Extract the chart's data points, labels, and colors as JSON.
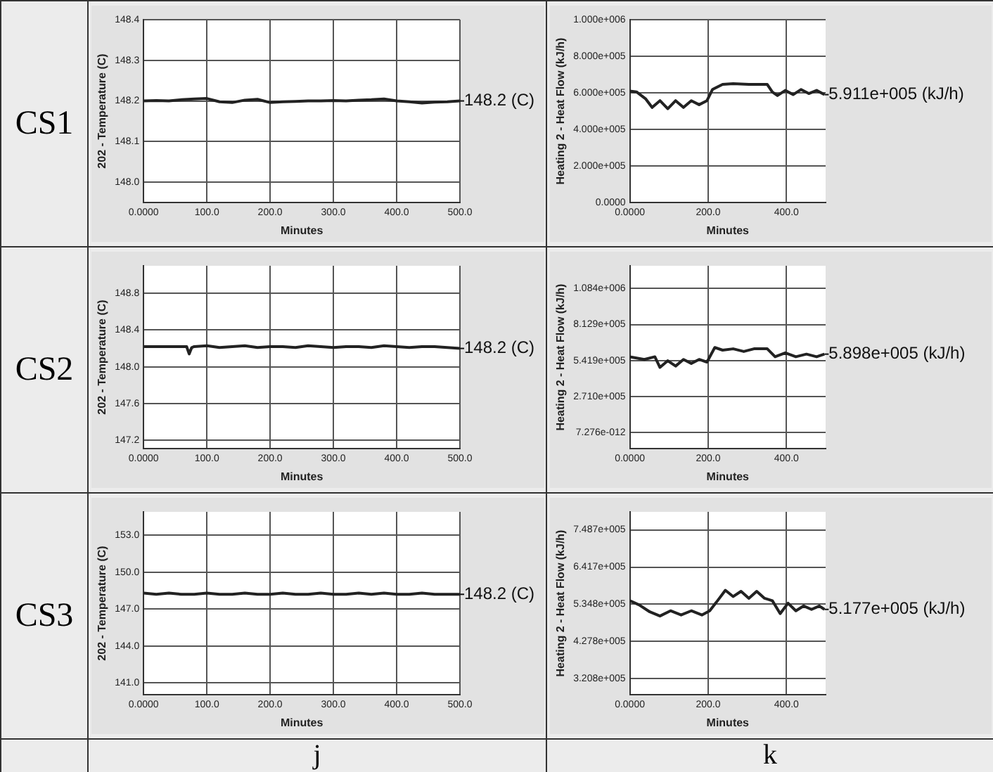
{
  "chart_data": [
    {
      "type": "line",
      "xlabel": "Minutes",
      "ylabel": "202 - Temperature (C)",
      "grid": true,
      "x": [
        0,
        20,
        40,
        60,
        80,
        100,
        120,
        140,
        160,
        180,
        200,
        220,
        240,
        260,
        280,
        300,
        320,
        340,
        360,
        380,
        400,
        420,
        440,
        460,
        480,
        500
      ],
      "series": [
        {
          "color": "#222222",
          "values": [
            148.2,
            148.201,
            148.2,
            148.203,
            148.205,
            148.206,
            148.198,
            148.196,
            148.202,
            148.204,
            148.196,
            148.198,
            148.199,
            148.2,
            148.2,
            148.201,
            148.2,
            148.202,
            148.203,
            148.205,
            148.2,
            148.198,
            148.195,
            148.197,
            148.198,
            148.2
          ]
        }
      ],
      "xlim": [
        0,
        500
      ],
      "xticks": [
        {
          "value": 0,
          "label": "0.0000"
        },
        {
          "value": 100,
          "label": "100.0"
        },
        {
          "value": 200,
          "label": "200.0"
        },
        {
          "value": 300,
          "label": "300.0"
        },
        {
          "value": 400,
          "label": "400.0"
        },
        {
          "value": 500,
          "label": "500.0"
        }
      ],
      "ylim": [
        147.95,
        148.4
      ],
      "yticks": [
        {
          "value": 148.0,
          "label": "148.0"
        },
        {
          "value": 148.1,
          "label": "148.1"
        },
        {
          "value": 148.2,
          "label": "148.2"
        },
        {
          "value": 148.3,
          "label": "148.3"
        },
        {
          "value": 148.4,
          "label": "148.4"
        }
      ],
      "annotations": [
        "CS1",
        "148.2 (C)"
      ]
    },
    {
      "type": "line",
      "xlabel": "Minutes",
      "ylabel": "Heating 2 - Heat Flow (kJ/h)",
      "grid": true,
      "x": [
        0,
        17,
        40,
        57,
        77,
        97,
        117,
        137,
        157,
        177,
        197,
        211,
        237,
        264,
        304,
        351,
        364,
        377,
        397,
        417,
        437,
        457,
        477,
        497
      ],
      "series": [
        {
          "color": "#222222",
          "values": [
            610000,
            605000,
            568000,
            520000,
            557000,
            513000,
            557000,
            520000,
            557000,
            535000,
            557000,
            618000,
            646000,
            650000,
            646000,
            646000,
            604000,
            585000,
            613000,
            590000,
            618000,
            596000,
            613000,
            590000
          ]
        }
      ],
      "xlim": [
        0,
        500
      ],
      "xticks": [
        {
          "value": 0,
          "label": "0.0000"
        },
        {
          "value": 200,
          "label": "200.0"
        },
        {
          "value": 400,
          "label": "400.0"
        }
      ],
      "ylim": [
        0,
        1000000
      ],
      "yticks": [
        {
          "value": 0,
          "label": "0.0000"
        },
        {
          "value": 200000,
          "label": "2.000e+005"
        },
        {
          "value": 400000,
          "label": "4.000e+005"
        },
        {
          "value": 600000,
          "label": "6.000e+005"
        },
        {
          "value": 800000,
          "label": "8.000e+005"
        },
        {
          "value": 1000000,
          "label": "1.000e+006"
        }
      ],
      "annotations": [
        "5.911e+005 (kJ/h)"
      ]
    },
    {
      "type": "line",
      "xlabel": "Minutes",
      "ylabel": "202 - Temperature (C)",
      "grid": true,
      "x": [
        0,
        20,
        40,
        60,
        68,
        72,
        76,
        80,
        100,
        120,
        140,
        160,
        180,
        200,
        220,
        240,
        260,
        280,
        300,
        320,
        340,
        360,
        380,
        400,
        420,
        440,
        460,
        480,
        500
      ],
      "series": [
        {
          "color": "#222222",
          "values": [
            148.22,
            148.22,
            148.22,
            148.22,
            148.22,
            148.14,
            148.21,
            148.22,
            148.23,
            148.21,
            148.22,
            148.23,
            148.21,
            148.22,
            148.22,
            148.21,
            148.23,
            148.22,
            148.21,
            148.22,
            148.22,
            148.21,
            148.23,
            148.22,
            148.21,
            148.22,
            148.22,
            148.21,
            148.2
          ]
        }
      ],
      "xlim": [
        0,
        500
      ],
      "xticks": [
        {
          "value": 0,
          "label": "0.0000"
        },
        {
          "value": 100,
          "label": "100.0"
        },
        {
          "value": 200,
          "label": "200.0"
        },
        {
          "value": 300,
          "label": "300.0"
        },
        {
          "value": 400,
          "label": "400.0"
        },
        {
          "value": 500,
          "label": "500.0"
        }
      ],
      "ylim": [
        147.11,
        149.1
      ],
      "yticks": [
        {
          "value": 147.2,
          "label": "147.2"
        },
        {
          "value": 147.6,
          "label": "147.6"
        },
        {
          "value": 148.0,
          "label": "148.0"
        },
        {
          "value": 148.4,
          "label": "148.4"
        },
        {
          "value": 148.8,
          "label": "148.8"
        }
      ],
      "annotations": [
        "CS2",
        "148.2 (C)"
      ]
    },
    {
      "type": "line",
      "xlabel": "Minutes",
      "ylabel": "Heating 2 - Heat Flow (kJ/h)",
      "grid": true,
      "x": [
        0,
        37,
        64,
        77,
        97,
        117,
        137,
        157,
        177,
        197,
        217,
        237,
        264,
        291,
        317,
        351,
        371,
        397,
        424,
        451,
        477,
        497
      ],
      "series": [
        {
          "color": "#222222",
          "values": [
            570000,
            550000,
            570000,
            490000,
            540000,
            500000,
            550000,
            520000,
            550000,
            530000,
            640000,
            620000,
            630000,
            610000,
            630000,
            630000,
            570000,
            600000,
            570000,
            590000,
            570000,
            590000
          ]
        }
      ],
      "xlim": [
        0,
        500
      ],
      "xticks": [
        {
          "value": 0,
          "label": "0.0000"
        },
        {
          "value": 200,
          "label": "200.0"
        },
        {
          "value": 400,
          "label": "400.0"
        }
      ],
      "ylim": [
        -122000,
        1256000
      ],
      "yticks": [
        {
          "value": 7.276e-12,
          "label": "7.276e-012"
        },
        {
          "value": 271000,
          "label": "2.710e+005"
        },
        {
          "value": 541900,
          "label": "5.419e+005"
        },
        {
          "value": 812900,
          "label": "8.129e+005"
        },
        {
          "value": 1084000,
          "label": "1.084e+006"
        }
      ],
      "annotations": [
        "5.898e+005 (kJ/h)"
      ]
    },
    {
      "type": "line",
      "xlabel": "Minutes",
      "ylabel": "202 - Temperature (C)",
      "grid": true,
      "x": [
        0,
        20,
        40,
        60,
        80,
        100,
        120,
        140,
        160,
        180,
        200,
        220,
        240,
        260,
        280,
        300,
        320,
        340,
        360,
        380,
        400,
        420,
        440,
        460,
        480,
        500
      ],
      "series": [
        {
          "color": "#222222",
          "values": [
            148.3,
            148.2,
            148.3,
            148.2,
            148.2,
            148.3,
            148.2,
            148.2,
            148.3,
            148.2,
            148.2,
            148.3,
            148.2,
            148.2,
            148.3,
            148.2,
            148.2,
            148.3,
            148.2,
            148.3,
            148.2,
            148.2,
            148.3,
            148.2,
            148.2,
            148.2
          ]
        }
      ],
      "xlim": [
        0,
        500
      ],
      "xticks": [
        {
          "value": 0,
          "label": "0.0000"
        },
        {
          "value": 100,
          "label": "100.0"
        },
        {
          "value": 200,
          "label": "200.0"
        },
        {
          "value": 300,
          "label": "300.0"
        },
        {
          "value": 400,
          "label": "400.0"
        },
        {
          "value": 500,
          "label": "500.0"
        }
      ],
      "ylim": [
        140.05,
        154.9
      ],
      "yticks": [
        {
          "value": 141.0,
          "label": "141.0"
        },
        {
          "value": 144.0,
          "label": "144.0"
        },
        {
          "value": 147.0,
          "label": "147.0"
        },
        {
          "value": 150.0,
          "label": "150.0"
        },
        {
          "value": 153.0,
          "label": "153.0"
        }
      ],
      "annotations": [
        "CS3",
        "j",
        "148.2 (C)"
      ]
    },
    {
      "type": "line",
      "xlabel": "Minutes",
      "ylabel": "Heating 2 - Heat Flow (kJ/h)",
      "grid": true,
      "x": [
        0,
        24,
        51,
        77,
        104,
        131,
        157,
        184,
        204,
        224,
        244,
        264,
        284,
        304,
        324,
        344,
        364,
        384,
        404,
        424,
        444,
        464,
        484,
        497
      ],
      "series": [
        {
          "color": "#222222",
          "values": [
            545000,
            533000,
            513000,
            501000,
            516000,
            504000,
            516000,
            504000,
            516000,
            545000,
            575000,
            557000,
            572000,
            552000,
            572000,
            552000,
            545000,
            508000,
            538000,
            516000,
            530000,
            520000,
            530000,
            520000
          ]
        }
      ],
      "xlim": [
        0,
        500
      ],
      "xticks": [
        {
          "value": 0,
          "label": "0.0000"
        },
        {
          "value": 200,
          "label": "200.0"
        },
        {
          "value": 400,
          "label": "400.0"
        }
      ],
      "ylim": [
        274900,
        800500
      ],
      "yticks": [
        {
          "value": 320800,
          "label": "3.208e+005"
        },
        {
          "value": 427800,
          "label": "4.278e+005"
        },
        {
          "value": 534800,
          "label": "5.348e+005"
        },
        {
          "value": 641700,
          "label": "6.417e+005"
        },
        {
          "value": 748700,
          "label": "7.487e+005"
        }
      ],
      "annotations": [
        "k",
        "5.177e+005 (kJ/h)"
      ]
    }
  ]
}
